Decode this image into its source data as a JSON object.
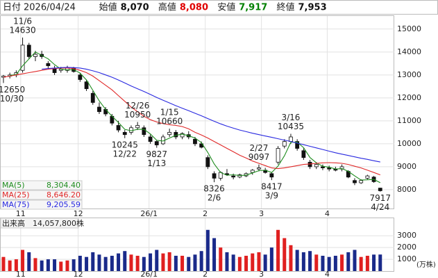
{
  "header": {
    "date_label": "日付",
    "date": "2026/04/24",
    "fields": [
      {
        "label": "始値",
        "value": "8,070",
        "color": "#111"
      },
      {
        "label": "高値",
        "value": "8,080",
        "color": "#e00000"
      },
      {
        "label": "安値",
        "value": "7,917",
        "color": "#008000"
      },
      {
        "label": "終値",
        "value": "7,953",
        "color": "#111"
      }
    ]
  },
  "chart_data": {
    "type": "candlestick",
    "ohlc": [
      [
        12900,
        13000,
        12650,
        12950
      ],
      [
        12950,
        13100,
        12850,
        13000
      ],
      [
        13000,
        13200,
        12900,
        13100
      ],
      [
        13200,
        14630,
        13100,
        14300
      ],
      [
        14300,
        14400,
        13700,
        13800
      ],
      [
        13800,
        14050,
        13600,
        13900
      ],
      [
        13900,
        14050,
        13700,
        13800
      ],
      [
        13500,
        13600,
        13300,
        13400
      ],
      [
        13300,
        13400,
        13000,
        13100
      ],
      [
        13200,
        13350,
        13100,
        13250
      ],
      [
        13200,
        13400,
        13100,
        13300
      ],
      [
        13300,
        13350,
        13100,
        13150
      ],
      [
        13000,
        13100,
        12700,
        12800
      ],
      [
        12700,
        12800,
        12300,
        12400
      ],
      [
        12200,
        12300,
        11700,
        11800
      ],
      [
        11600,
        11800,
        11300,
        11400
      ],
      [
        11500,
        11600,
        11200,
        11300
      ],
      [
        11200,
        11300,
        10800,
        10900
      ],
      [
        10800,
        11000,
        10500,
        10600
      ],
      [
        10500,
        10600,
        10245,
        10400
      ],
      [
        10500,
        10800,
        10400,
        10700
      ],
      [
        10700,
        10950,
        10600,
        10800
      ],
      [
        10700,
        10800,
        10300,
        10400
      ],
      [
        10300,
        10400,
        10000,
        10100
      ],
      [
        10100,
        10150,
        9827,
        9950
      ],
      [
        10000,
        10400,
        9950,
        10300
      ],
      [
        10400,
        10660,
        10300,
        10500
      ],
      [
        10500,
        10600,
        10200,
        10300
      ],
      [
        10300,
        10500,
        10200,
        10450
      ],
      [
        10400,
        10550,
        10200,
        10300
      ],
      [
        10200,
        10300,
        9900,
        10000
      ],
      [
        10000,
        10100,
        9800,
        9850
      ],
      [
        9400,
        9500,
        8900,
        9000
      ],
      [
        8700,
        8800,
        8326,
        8500
      ],
      [
        8500,
        8800,
        8400,
        8750
      ],
      [
        8700,
        8900,
        8600,
        8650
      ],
      [
        8600,
        8700,
        8450,
        8550
      ],
      [
        8550,
        8700,
        8500,
        8650
      ],
      [
        8600,
        8750,
        8550,
        8700
      ],
      [
        8750,
        8900,
        8650,
        8850
      ],
      [
        8900,
        9097,
        8800,
        8950
      ],
      [
        8850,
        8950,
        8700,
        8750
      ],
      [
        8700,
        8750,
        8417,
        8550
      ],
      [
        9200,
        9900,
        9100,
        9800
      ],
      [
        9900,
        10200,
        9800,
        10100
      ],
      [
        10100,
        10435,
        10000,
        10300
      ],
      [
        10100,
        10200,
        9700,
        9800
      ],
      [
        9700,
        9800,
        9300,
        9400
      ],
      [
        9200,
        9300,
        8900,
        9000
      ],
      [
        9000,
        9200,
        8900,
        9100
      ],
      [
        9000,
        9100,
        8850,
        8950
      ],
      [
        8950,
        9050,
        8800,
        8900
      ],
      [
        8900,
        9000,
        8800,
        8850
      ],
      [
        8900,
        9100,
        8800,
        9000
      ],
      [
        8800,
        8850,
        8500,
        8550
      ],
      [
        8400,
        8500,
        8200,
        8300
      ],
      [
        8300,
        8450,
        8250,
        8400
      ],
      [
        8500,
        8650,
        8450,
        8600
      ],
      [
        8550,
        8600,
        8300,
        8350
      ],
      [
        8070,
        8080,
        7917,
        7953
      ]
    ],
    "ylim": [
      7180,
      15600
    ],
    "yticks": [
      8000,
      9000,
      10000,
      11000,
      12000,
      13000,
      14000,
      15000
    ],
    "xlim": [
      -0.54,
      61.2
    ],
    "xticks": [
      {
        "value": 2.7,
        "label": "11"
      },
      {
        "value": 11.7,
        "label": "12"
      },
      {
        "value": 22.8,
        "label": "26/1"
      },
      {
        "value": 31.6,
        "label": "2"
      },
      {
        "value": 40.4,
        "label": "3"
      },
      {
        "value": 50.7,
        "label": "4"
      }
    ],
    "grid": true,
    "series": [
      {
        "name": "MA(5)",
        "color": "#1e8c1e",
        "value_label": "8,304.40",
        "values": [
          null,
          12980,
          13020,
          13400,
          13700,
          14000,
          13850,
          13700,
          13450,
          13250,
          13220,
          13230,
          13080,
          12780,
          12330,
          11870,
          11500,
          11200,
          10930,
          10630,
          10570,
          10630,
          10630,
          10430,
          10150,
          10120,
          10250,
          10370,
          10420,
          10350,
          10250,
          10050,
          9620,
          9120,
          8750,
          8630,
          8650,
          8620,
          8630,
          8730,
          8830,
          8850,
          8750,
          9030,
          9480,
          10070,
          10070,
          9830,
          9400,
          9170,
          9020,
          8980,
          8900,
          8920,
          8800,
          8600,
          8420,
          8430,
          8450,
          8304.4
        ]
      },
      {
        "name": "MA(25)",
        "color": "#e02828",
        "value_label": "8,646.20",
        "values": [
          12900,
          12950,
          13000,
          13050,
          13100,
          13150,
          13200,
          13250,
          13280,
          13300,
          13300,
          13280,
          13200,
          13100,
          12950,
          12750,
          12550,
          12350,
          12100,
          11850,
          11600,
          11400,
          11200,
          11050,
          10950,
          10880,
          10830,
          10800,
          10750,
          10650,
          10500,
          10380,
          10250,
          10100,
          9950,
          9800,
          9650,
          9500,
          9380,
          9250,
          9150,
          9050,
          8950,
          8920,
          8950,
          9000,
          9050,
          9100,
          9120,
          9150,
          9170,
          9180,
          9170,
          9150,
          9100,
          9020,
          8950,
          8850,
          8750,
          8646.2
        ]
      },
      {
        "name": "MA(75)",
        "color": "#2828e0",
        "value_label": "9,205.59",
        "values": [
          null,
          null,
          null,
          null,
          null,
          null,
          13250,
          13280,
          13300,
          13320,
          13330,
          13320,
          13300,
          13250,
          13180,
          13100,
          13000,
          12900,
          12780,
          12650,
          12520,
          12400,
          12280,
          12150,
          12020,
          11900,
          11780,
          11660,
          11550,
          11440,
          11330,
          11220,
          11100,
          10980,
          10870,
          10770,
          10680,
          10600,
          10530,
          10460,
          10400,
          10340,
          10280,
          10220,
          10160,
          10100,
          10030,
          9960,
          9890,
          9820,
          9750,
          9680,
          9610,
          9550,
          9490,
          9430,
          9370,
          9320,
          9260,
          9205.59
        ]
      }
    ],
    "annotations": [
      {
        "date": "11/6",
        "price": 14630
      },
      {
        "date": "10/30",
        "price": 12650
      },
      {
        "date": "12/26",
        "price": 10950
      },
      {
        "date": "12/22",
        "price": 10245
      },
      {
        "date": "1/15",
        "price": 10660
      },
      {
        "date": "1/13",
        "price": 9827
      },
      {
        "date": "2/6",
        "price": 8326
      },
      {
        "date": "2/27",
        "price": 9097
      },
      {
        "date": "3/9",
        "price": 8417
      },
      {
        "date": "3/16",
        "price": 10435
      },
      {
        "date": "4/24",
        "price": 7917
      }
    ],
    "volume": {
      "caption": "出来高　14,057,800株",
      "unit": "(万株)",
      "ylim": [
        0,
        4550
      ],
      "yticks": [
        1000,
        2000,
        3000
      ],
      "values": [
        1200,
        900,
        1000,
        1800,
        1600,
        1100,
        900,
        1000,
        1000,
        800,
        900,
        1000,
        1300,
        1200,
        1600,
        1400,
        1200,
        1300,
        1500,
        1700,
        1400,
        1300,
        1200,
        1500,
        1800,
        1500,
        1600,
        1300,
        1300,
        1200,
        1400,
        1700,
        3500,
        2800,
        2000,
        1600,
        1400,
        1200,
        1300,
        1500,
        1600,
        1400,
        2000,
        3500,
        2800,
        2200,
        1800,
        1600,
        1700,
        1400,
        1300,
        1200,
        1300,
        1400,
        1600,
        1800,
        1200,
        1300,
        1400,
        1405.78
      ]
    }
  }
}
